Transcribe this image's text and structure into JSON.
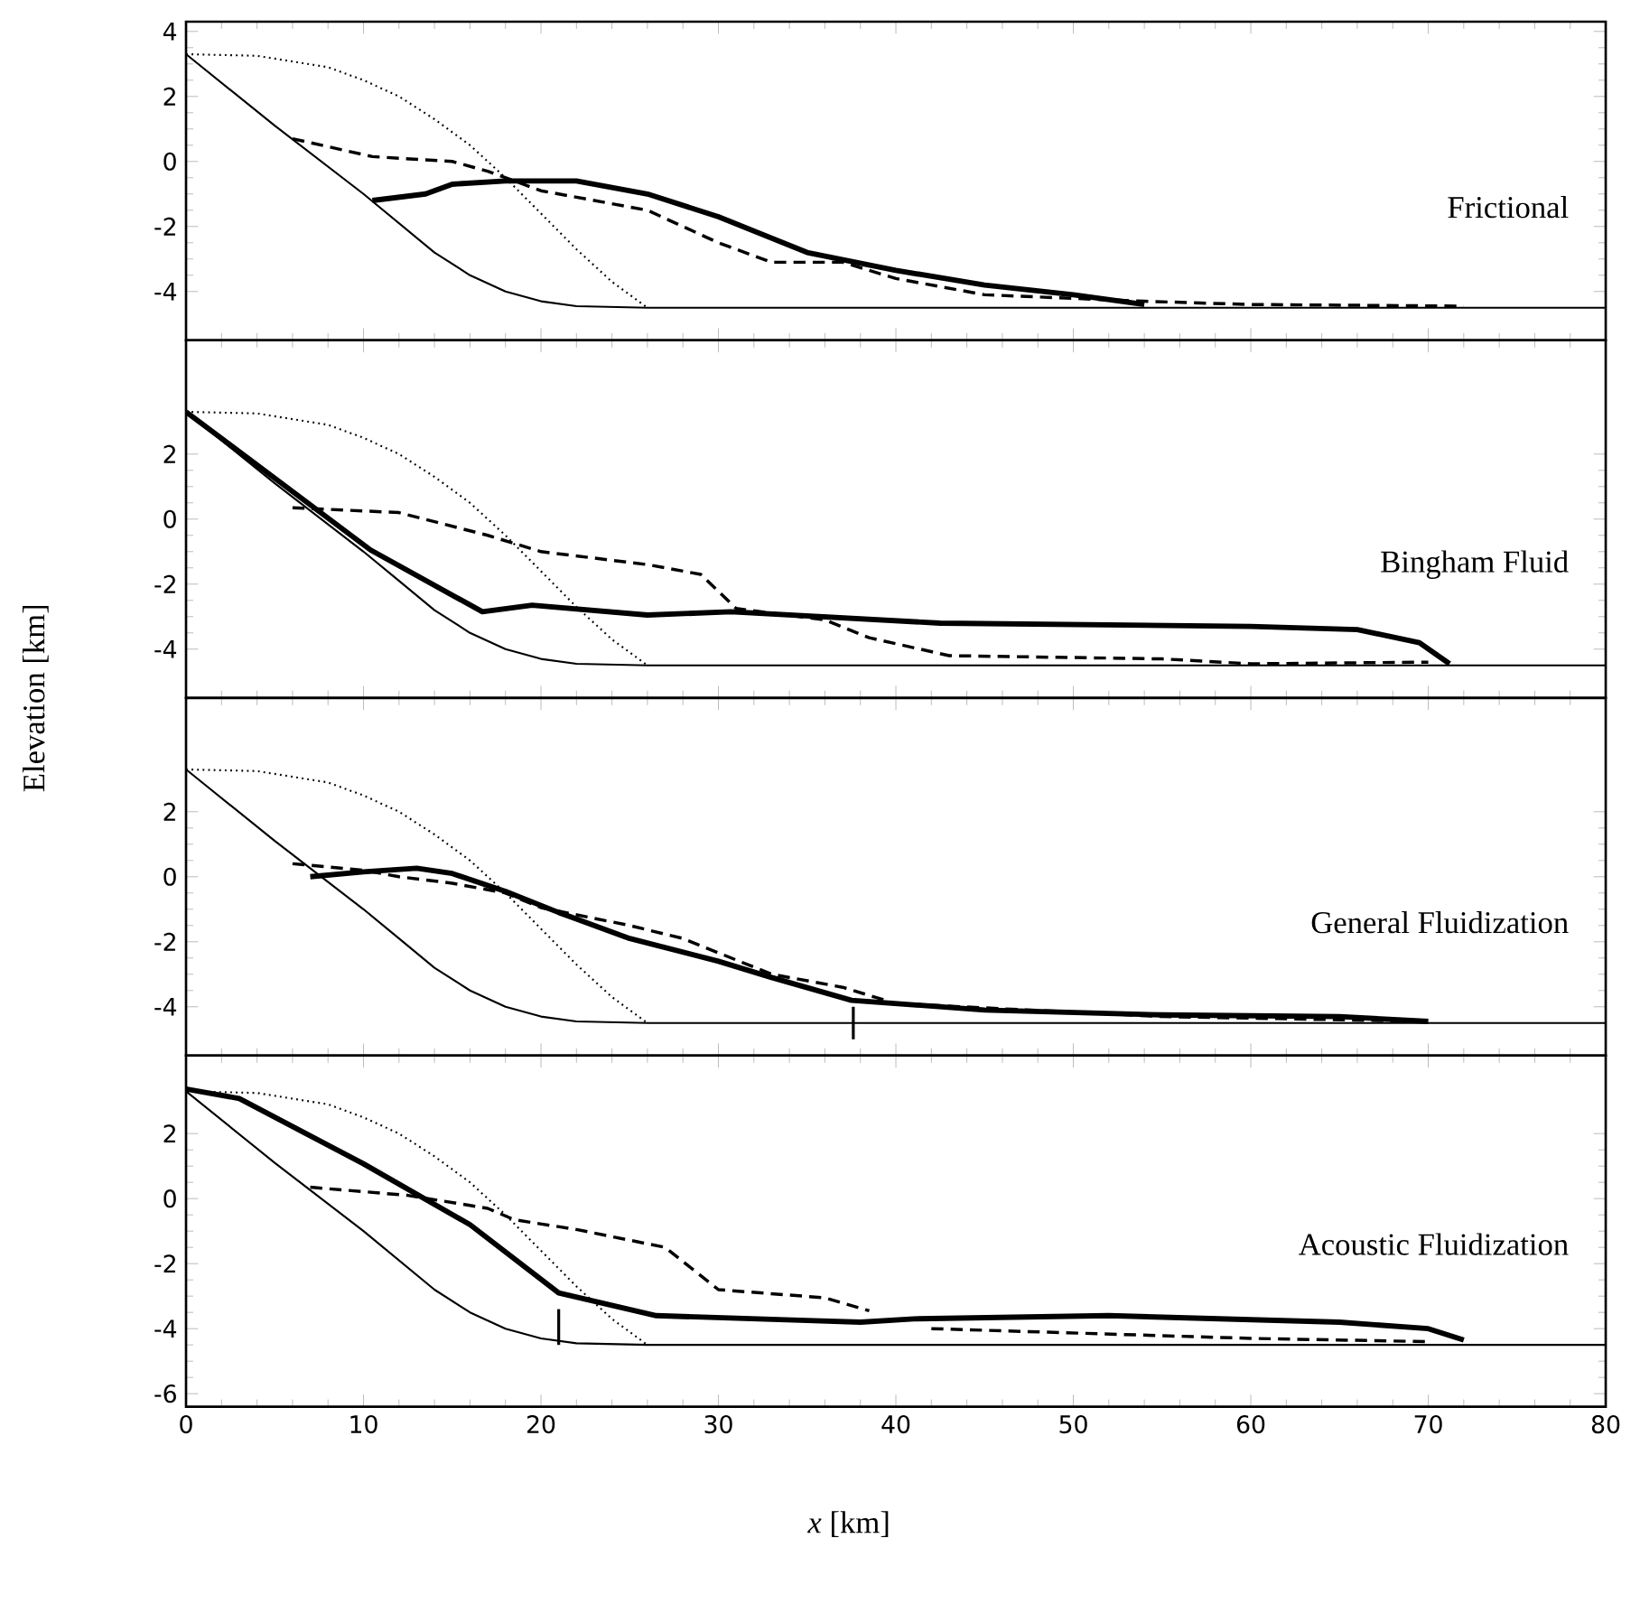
{
  "chart_data": [
    {
      "type": "line",
      "title": "Frictional",
      "xlim": [
        0,
        80
      ],
      "xticks": [
        0,
        10,
        20,
        30,
        40,
        50,
        60,
        70,
        80
      ],
      "ylim": [
        -5.5,
        4.3
      ],
      "yticks": [
        4,
        2,
        0,
        -2,
        -4
      ],
      "tick_labels": "y",
      "series": [
        {
          "color": "#000000",
          "line_style": "solid",
          "x": [
            0,
            5,
            10,
            12,
            14,
            16,
            18,
            20,
            22,
            26,
            80
          ],
          "values": [
            3.3,
            1.1,
            -1.0,
            -1.9,
            -2.8,
            -3.5,
            -4.0,
            -4.3,
            -4.45,
            -4.5,
            -4.5
          ]
        },
        {
          "color": "#000000",
          "line_style": "dotted",
          "x": [
            0,
            4,
            8,
            10,
            12,
            14,
            16,
            18,
            20,
            22,
            24,
            26
          ],
          "values": [
            3.3,
            3.25,
            2.9,
            2.5,
            2.0,
            1.3,
            0.5,
            -0.5,
            -1.6,
            -2.7,
            -3.7,
            -4.5
          ]
        },
        {
          "color": "#000000",
          "line_style": "dashed",
          "x": [
            6,
            10.5,
            15,
            17,
            20,
            26,
            30,
            33,
            37,
            40,
            45,
            54,
            60,
            72
          ],
          "values": [
            0.7,
            0.15,
            0.0,
            -0.3,
            -0.9,
            -1.5,
            -2.5,
            -3.1,
            -3.1,
            -3.6,
            -4.1,
            -4.3,
            -4.4,
            -4.45
          ]
        },
        {
          "color": "#000000",
          "line_style": "solid",
          "x": [
            10.5,
            13.5,
            15,
            18,
            22,
            26,
            30,
            35,
            40,
            45,
            50,
            54
          ],
          "values": [
            -1.2,
            -1.0,
            -0.7,
            -0.6,
            -0.6,
            -1.0,
            -1.7,
            -2.8,
            -3.35,
            -3.8,
            -4.1,
            -4.4
          ]
        }
      ]
    },
    {
      "type": "line",
      "title": "Bingham Fluid",
      "ylabel": "Elevation [km]",
      "xlim": [
        0,
        80
      ],
      "xticks": [
        0,
        10,
        20,
        30,
        40,
        50,
        60,
        70,
        80
      ],
      "ylim": [
        -5.5,
        5.5
      ],
      "yticks": [
        2,
        0,
        -2,
        -4
      ],
      "tick_labels": "y",
      "series": [
        {
          "color": "#000000",
          "line_style": "solid",
          "x": [
            0,
            5,
            10,
            12,
            14,
            16,
            18,
            20,
            22,
            26,
            80
          ],
          "values": [
            3.3,
            1.1,
            -1.0,
            -1.9,
            -2.8,
            -3.5,
            -4.0,
            -4.3,
            -4.45,
            -4.5,
            -4.5
          ]
        },
        {
          "color": "#000000",
          "line_style": "dotted",
          "x": [
            0,
            4,
            8,
            10,
            12,
            14,
            16,
            18,
            20,
            22,
            24,
            26
          ],
          "values": [
            3.3,
            3.25,
            2.9,
            2.5,
            2.0,
            1.3,
            0.5,
            -0.5,
            -1.6,
            -2.7,
            -3.7,
            -4.5
          ]
        },
        {
          "color": "#000000",
          "line_style": "dashed",
          "x": [
            6,
            12,
            17,
            20,
            26,
            29,
            31,
            36,
            38.5,
            43,
            55,
            60,
            70
          ],
          "values": [
            0.35,
            0.2,
            -0.5,
            -1.0,
            -1.4,
            -1.7,
            -2.75,
            -3.1,
            -3.65,
            -4.2,
            -4.3,
            -4.45,
            -4.4
          ]
        },
        {
          "color": "#000000",
          "line_style": "solid",
          "x": [
            0,
            10.4,
            16.7,
            19.5,
            26,
            30.7,
            42.5,
            60,
            66,
            69.5,
            71.2
          ],
          "values": [
            3.3,
            -0.95,
            -2.85,
            -2.65,
            -2.95,
            -2.85,
            -3.2,
            -3.3,
            -3.4,
            -3.8,
            -4.45
          ]
        }
      ]
    },
    {
      "type": "line",
      "title": "General Fluidization",
      "xlim": [
        0,
        80
      ],
      "xticks": [
        0,
        10,
        20,
        30,
        40,
        50,
        60,
        70,
        80
      ],
      "ylim": [
        -5.5,
        5.5
      ],
      "yticks": [
        2,
        0,
        -2,
        -4
      ],
      "tick_labels": "y",
      "series": [
        {
          "color": "#000000",
          "line_style": "solid",
          "x": [
            0,
            5,
            10,
            12,
            14,
            16,
            18,
            20,
            22,
            26,
            80
          ],
          "values": [
            3.3,
            1.1,
            -1.0,
            -1.9,
            -2.8,
            -3.5,
            -4.0,
            -4.3,
            -4.45,
            -4.5,
            -4.5
          ]
        },
        {
          "color": "#000000",
          "line_style": "dotted",
          "x": [
            0,
            4,
            8,
            10,
            12,
            14,
            16,
            18,
            20,
            22,
            24,
            26
          ],
          "values": [
            3.3,
            3.25,
            2.9,
            2.5,
            2.0,
            1.3,
            0.5,
            -0.5,
            -1.6,
            -2.7,
            -3.7,
            -4.5
          ]
        },
        {
          "color": "#000000",
          "line_style": "dashed",
          "x": [
            6,
            10,
            12,
            15,
            18,
            20,
            25,
            28,
            33,
            37,
            40,
            55,
            70
          ],
          "values": [
            0.4,
            0.2,
            0.0,
            -0.2,
            -0.5,
            -0.95,
            -1.5,
            -1.9,
            -3.0,
            -3.4,
            -3.9,
            -4.3,
            -4.45
          ]
        },
        {
          "color": "#000000",
          "line_style": "solid",
          "x": [
            7,
            10,
            13,
            15,
            18,
            21,
            25,
            30,
            33,
            37.5,
            45,
            55,
            65,
            70
          ],
          "values": [
            0.0,
            0.15,
            0.26,
            0.1,
            -0.45,
            -1.1,
            -1.9,
            -2.6,
            -3.1,
            -3.8,
            -4.1,
            -4.25,
            -4.3,
            -4.45
          ]
        },
        {
          "color": "#000000",
          "line_style": "solid",
          "x": [
            37.6,
            37.6
          ],
          "values": [
            -4.0,
            -5.0
          ]
        }
      ]
    },
    {
      "type": "line",
      "title": "Acoustic Fluidization",
      "xlabel": "*x* [km]",
      "xlim": [
        0,
        80
      ],
      "xticks": [
        0,
        10,
        20,
        30,
        40,
        50,
        60,
        70,
        80
      ],
      "ylim": [
        -6.4,
        4.4
      ],
      "yticks": [
        2,
        0,
        -2,
        -4,
        -6
      ],
      "series": [
        {
          "color": "#000000",
          "line_style": "solid",
          "x": [
            0,
            5,
            10,
            12,
            14,
            16,
            18,
            20,
            22,
            26,
            80
          ],
          "values": [
            3.3,
            1.1,
            -1.0,
            -1.9,
            -2.8,
            -3.5,
            -4.0,
            -4.3,
            -4.45,
            -4.5,
            -4.5
          ]
        },
        {
          "color": "#000000",
          "line_style": "dotted",
          "x": [
            0,
            4,
            8,
            10,
            12,
            14,
            16,
            18,
            20,
            22,
            24,
            26
          ],
          "values": [
            3.3,
            3.25,
            2.9,
            2.5,
            2.0,
            1.3,
            0.5,
            -0.5,
            -1.6,
            -2.7,
            -3.7,
            -4.5
          ]
        },
        {
          "color": "#000000",
          "line_style": "dashed",
          "x": [
            7,
            12.5,
            17,
            18.5,
            22,
            27,
            30,
            36,
            38.5,
            40,
            42,
            60,
            70
          ],
          "values": [
            0.35,
            0.1,
            -0.3,
            -0.65,
            -0.95,
            -1.5,
            -2.8,
            -3.05,
            -3.45,
            null,
            -4.0,
            -4.3,
            -4.4
          ]
        },
        {
          "color": "#000000",
          "line_style": "solid",
          "x": [
            0,
            3,
            10,
            16,
            21,
            26.5,
            35,
            38,
            41,
            52,
            65,
            70,
            72
          ],
          "values": [
            3.37,
            3.08,
            1.07,
            -0.8,
            -2.9,
            -3.6,
            -3.75,
            -3.8,
            -3.7,
            -3.6,
            -3.8,
            -4.0,
            -4.35
          ]
        },
        {
          "color": "#000000",
          "line_style": "solid",
          "x": [
            21,
            21
          ],
          "values": [
            -3.4,
            -4.5
          ]
        }
      ]
    }
  ]
}
